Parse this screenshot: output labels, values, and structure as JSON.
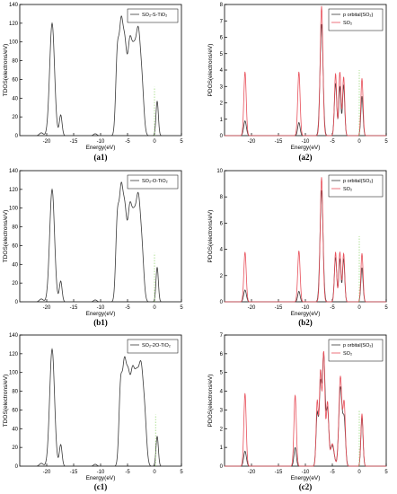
{
  "colors": {
    "tdos": "#3a3a3a",
    "p_orbital": "#3a3a3a",
    "so2": "#e8505b",
    "fermi_marker": "#8fd46b",
    "frame": "#000000",
    "background": "#ffffff"
  },
  "chart_data": [
    {
      "id": "a1",
      "type": "line",
      "caption": "(a1)",
      "ylabel": "TDOS(electrons/eV)",
      "xlabel": "Energy(eV)",
      "xlim": [
        -25,
        5
      ],
      "ylim": [
        0,
        140
      ],
      "xticks": [
        -20,
        -15,
        -10,
        -5,
        0,
        5
      ],
      "yticks": [
        0,
        20,
        40,
        60,
        80,
        100,
        120,
        140
      ],
      "legend": "top-right",
      "series": [
        {
          "name": "SO₂-S-TiO₂",
          "color": "tdos",
          "peaks": [
            [
              -21,
              3,
              0.35
            ],
            [
              -19.0,
              120,
              0.45
            ],
            [
              -17.4,
              22,
              0.25
            ],
            [
              -11,
              2,
              0.3
            ],
            [
              -6.9,
              82,
              0.3
            ],
            [
              -6.2,
              110,
              0.35
            ],
            [
              -5.5,
              85,
              0.35
            ],
            [
              -4.6,
              92,
              0.4
            ],
            [
              -3.8,
              75,
              0.4
            ],
            [
              -3.0,
              100,
              0.4
            ],
            [
              -2.3,
              45,
              0.35
            ],
            [
              0.5,
              37,
              0.22
            ]
          ]
        },
        {
          "name": "",
          "color": "fermi_marker",
          "marker_x": 0,
          "marker_top": 52
        }
      ]
    },
    {
      "id": "a2",
      "type": "line",
      "caption": "(a2)",
      "ylabel": "PDOS(electrons/eV)",
      "xlabel": "Energy(eV)",
      "xlim": [
        -25,
        5
      ],
      "ylim": [
        0,
        8
      ],
      "xticks": [
        -20,
        -15,
        -10,
        -5,
        0,
        5
      ],
      "yticks": [
        0,
        1,
        2,
        3,
        4,
        5,
        6,
        7,
        8
      ],
      "legend": "top-right",
      "series": [
        {
          "name": "p orbital(SO₂)",
          "color": "p_orbital",
          "peaks": [
            [
              -21.2,
              0.9,
              0.25
            ],
            [
              -11.2,
              0.8,
              0.22
            ],
            [
              -7.0,
              6.8,
              0.28
            ],
            [
              -4.4,
              3.2,
              0.22
            ],
            [
              -3.6,
              3.0,
              0.2
            ],
            [
              -2.9,
              3.1,
              0.2
            ],
            [
              0.5,
              2.4,
              0.2
            ]
          ]
        },
        {
          "name": "SO₂",
          "color": "so2",
          "peaks": [
            [
              -21.2,
              3.9,
              0.22
            ],
            [
              -11.2,
              3.9,
              0.22
            ],
            [
              -7.0,
              7.9,
              0.25
            ],
            [
              -4.4,
              3.8,
              0.2
            ],
            [
              -3.6,
              3.9,
              0.2
            ],
            [
              -2.9,
              3.6,
              0.2
            ],
            [
              0.5,
              3.5,
              0.2
            ]
          ]
        },
        {
          "name": "",
          "color": "fermi_marker",
          "marker_x": 0,
          "marker_top": 4.0
        }
      ]
    },
    {
      "id": "b1",
      "type": "line",
      "caption": "(b1)",
      "ylabel": "TDOS(electrons/eV)",
      "xlabel": "Energy(eV)",
      "xlim": [
        -25,
        5
      ],
      "ylim": [
        0,
        140
      ],
      "xticks": [
        -20,
        -15,
        -10,
        -5,
        0,
        5
      ],
      "yticks": [
        0,
        20,
        40,
        60,
        80,
        100,
        120,
        140
      ],
      "legend": "top-right",
      "series": [
        {
          "name": "SO₂-O-TiO₂",
          "color": "tdos",
          "peaks": [
            [
              -21,
              3,
              0.35
            ],
            [
              -19.0,
              120,
              0.45
            ],
            [
              -17.4,
              22,
              0.25
            ],
            [
              -11,
              2,
              0.3
            ],
            [
              -6.9,
              82,
              0.3
            ],
            [
              -6.2,
              110,
              0.35
            ],
            [
              -5.5,
              85,
              0.35
            ],
            [
              -4.6,
              92,
              0.4
            ],
            [
              -3.8,
              75,
              0.4
            ],
            [
              -3.0,
              100,
              0.4
            ],
            [
              -2.3,
              45,
              0.35
            ],
            [
              0.5,
              37,
              0.22
            ]
          ]
        },
        {
          "name": "",
          "color": "fermi_marker",
          "marker_x": 0,
          "marker_top": 52
        }
      ]
    },
    {
      "id": "b2",
      "type": "line",
      "caption": "(b2)",
      "ylabel": "PDOS(electrons/eV)",
      "xlabel": "Energy(eV)",
      "xlim": [
        -25,
        5
      ],
      "ylim": [
        0,
        10
      ],
      "xticks": [
        -20,
        -15,
        -10,
        -5,
        0,
        5
      ],
      "yticks": [
        0,
        2,
        4,
        6,
        8,
        10
      ],
      "legend": "top-right",
      "series": [
        {
          "name": "p orbital(SO₂)",
          "color": "p_orbital",
          "peaks": [
            [
              -21.2,
              0.9,
              0.25
            ],
            [
              -11.2,
              0.8,
              0.22
            ],
            [
              -7.0,
              8.5,
              0.28
            ],
            [
              -4.4,
              3.4,
              0.22
            ],
            [
              -3.6,
              3.3,
              0.2
            ],
            [
              -2.9,
              3.3,
              0.2
            ],
            [
              0.5,
              2.6,
              0.2
            ]
          ]
        },
        {
          "name": "SO₂",
          "color": "so2",
          "peaks": [
            [
              -21.2,
              3.8,
              0.22
            ],
            [
              -11.2,
              3.9,
              0.22
            ],
            [
              -7.0,
              9.5,
              0.25
            ],
            [
              -4.4,
              3.8,
              0.2
            ],
            [
              -3.6,
              3.8,
              0.2
            ],
            [
              -2.9,
              3.7,
              0.2
            ],
            [
              0.5,
              3.7,
              0.2
            ]
          ]
        },
        {
          "name": "",
          "color": "fermi_marker",
          "marker_x": 0,
          "marker_top": 5.0
        }
      ]
    },
    {
      "id": "c1",
      "type": "line",
      "caption": "(c1)",
      "ylabel": "TDOS(electrons/eV)",
      "xlabel": "Energy(eV)",
      "xlim": [
        -25,
        5
      ],
      "ylim": [
        0,
        140
      ],
      "xticks": [
        -20,
        -15,
        -10,
        -5,
        0,
        5
      ],
      "yticks": [
        0,
        20,
        40,
        60,
        80,
        100,
        120,
        140
      ],
      "legend": "top-right",
      "series": [
        {
          "name": "SO₂-2O-TiO₂",
          "color": "tdos",
          "peaks": [
            [
              -21,
              3,
              0.35
            ],
            [
              -19.0,
              125,
              0.45
            ],
            [
              -17.4,
              23,
              0.25
            ],
            [
              -11,
              2,
              0.3
            ],
            [
              -6.3,
              80,
              0.3
            ],
            [
              -5.6,
              100,
              0.35
            ],
            [
              -4.9,
              80,
              0.35
            ],
            [
              -4.1,
              90,
              0.4
            ],
            [
              -3.3,
              80,
              0.4
            ],
            [
              -2.5,
              95,
              0.4
            ],
            [
              -1.8,
              45,
              0.35
            ],
            [
              0.5,
              32,
              0.22
            ]
          ]
        },
        {
          "name": "",
          "color": "fermi_marker",
          "marker_x": 0.2,
          "marker_top": 55
        }
      ]
    },
    {
      "id": "c2",
      "type": "line",
      "caption": "(c2)",
      "ylabel": "PDOS(electrons/eV)",
      "xlabel": "Energy(eV)",
      "xlim": [
        -25,
        5
      ],
      "ylim": [
        0,
        7
      ],
      "xticks": [
        -20,
        -15,
        -10,
        -5,
        0,
        5
      ],
      "yticks": [
        0,
        1,
        2,
        3,
        4,
        5,
        6,
        7
      ],
      "legend": "top-right",
      "series": [
        {
          "name": "p orbital(SO₂)",
          "color": "p_orbital",
          "peaks": [
            [
              -21.2,
              0.8,
              0.25
            ],
            [
              -11.9,
              1.0,
              0.22
            ],
            [
              -7.8,
              2.8,
              0.22
            ],
            [
              -7.2,
              4.2,
              0.22
            ],
            [
              -6.6,
              5.9,
              0.25
            ],
            [
              -5.9,
              3.0,
              0.25
            ],
            [
              -5.0,
              1.1,
              0.35
            ],
            [
              -3.5,
              4.2,
              0.3
            ],
            [
              -2.8,
              2.4,
              0.25
            ],
            [
              0.5,
              2.6,
              0.2
            ]
          ]
        },
        {
          "name": "SO₂",
          "color": "so2",
          "peaks": [
            [
              -21.2,
              3.9,
              0.22
            ],
            [
              -11.9,
              3.8,
              0.22
            ],
            [
              -7.8,
              3.5,
              0.2
            ],
            [
              -7.2,
              5.0,
              0.2
            ],
            [
              -6.6,
              6.1,
              0.22
            ],
            [
              -5.9,
              3.4,
              0.22
            ],
            [
              -5.0,
              1.2,
              0.35
            ],
            [
              -3.5,
              4.8,
              0.28
            ],
            [
              -2.8,
              3.3,
              0.22
            ],
            [
              0.5,
              2.8,
              0.2
            ]
          ]
        },
        {
          "name": "",
          "color": "fermi_marker",
          "marker_x": 0,
          "marker_top": 3.0
        }
      ]
    }
  ]
}
